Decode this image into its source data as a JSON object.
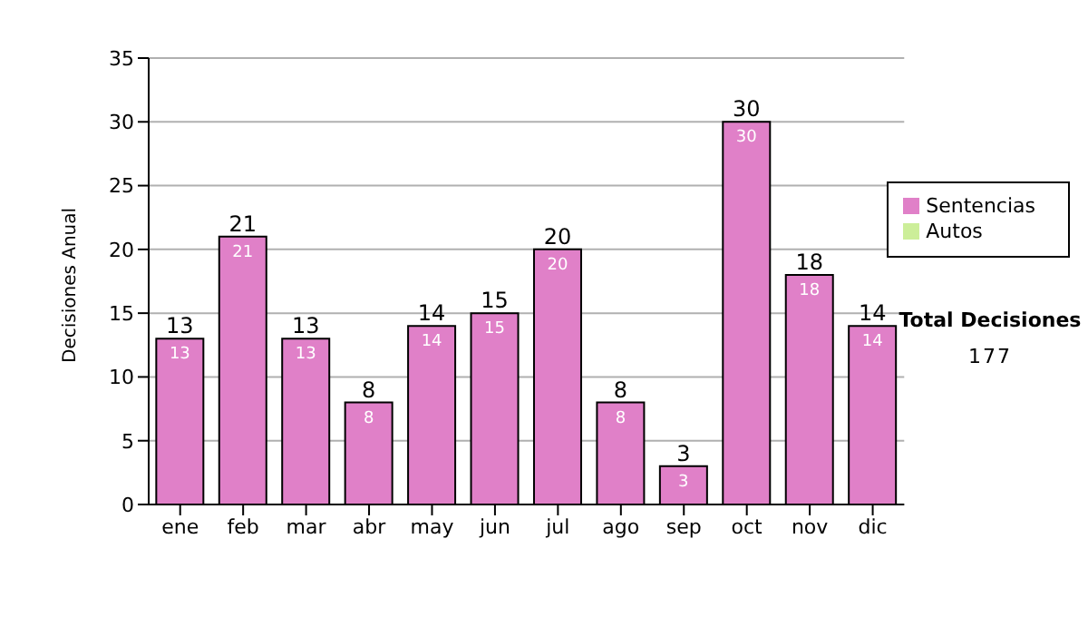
{
  "chart_data": {
    "type": "bar",
    "stacked": true,
    "ylabel": "Decisiones Anual",
    "categories": [
      "ene",
      "feb",
      "mar",
      "abr",
      "may",
      "jun",
      "jul",
      "ago",
      "sep",
      "oct",
      "nov",
      "dic"
    ],
    "series": [
      {
        "name": "Sentencias",
        "color": "#e080c8",
        "values": [
          13,
          21,
          13,
          8,
          14,
          15,
          20,
          8,
          3,
          30,
          18,
          14
        ],
        "value_labels": [
          "13",
          "21",
          "13",
          "8",
          "14",
          "15",
          "20",
          "8",
          "3",
          "30",
          "18",
          "14"
        ]
      },
      {
        "name": "Autos",
        "color": "#ccee99",
        "values": [
          0,
          0,
          0,
          0,
          0,
          0,
          0,
          0,
          0,
          0,
          0,
          0
        ]
      }
    ],
    "totals": [
      "13",
      "21",
      "13",
      "8",
      "14",
      "15",
      "20",
      "8",
      "3",
      "30",
      "18",
      "14"
    ],
    "ylim": [
      0,
      35
    ],
    "yticks": [
      0,
      5,
      10,
      15,
      20,
      25,
      30,
      35
    ],
    "grid": "y",
    "legend": "right",
    "annotations": [
      "Total Decisiones",
      "177"
    ]
  }
}
